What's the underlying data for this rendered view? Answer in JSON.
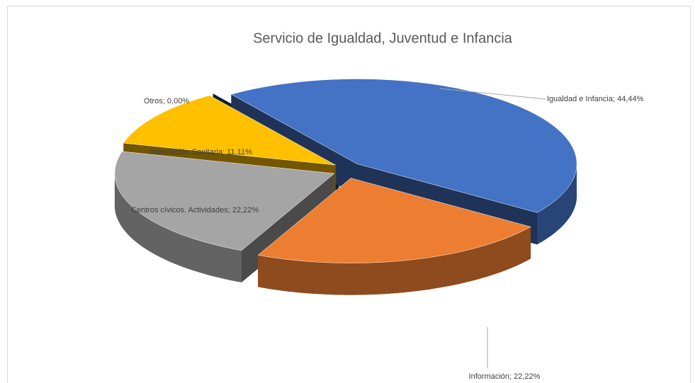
{
  "chart_data": {
    "type": "pie3d",
    "title": "Servicio de Igualdad, Juventud e Infancia",
    "values": [
      44.44,
      22.22,
      22.22,
      11.11,
      0.0
    ],
    "value_labels": [
      "Igualdad e Infancia; 44,44%",
      "Información; 22,22%",
      "Centros cívicos. Actividades; 22,22%",
      "Información Sanitaria; 11,11%",
      "Otros; 0,00%"
    ],
    "colors": [
      "#4472c4",
      "#ed7d31",
      "#a5a5a5",
      "#ffc000",
      "#264478"
    ]
  }
}
